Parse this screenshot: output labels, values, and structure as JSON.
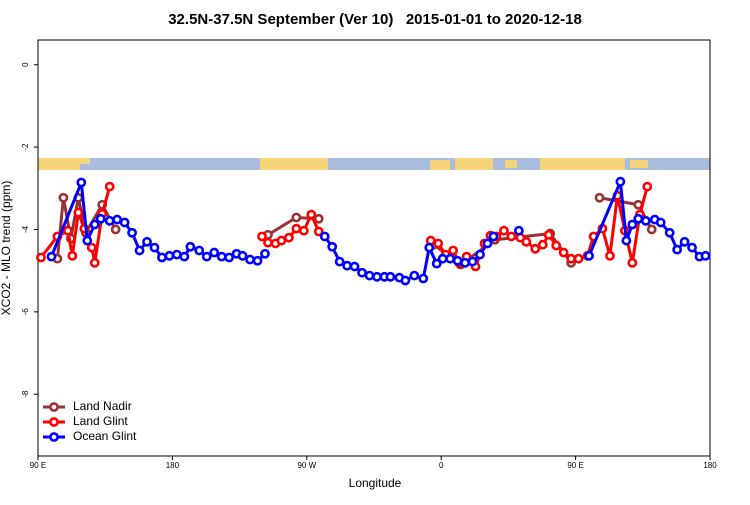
{
  "chart_data": {
    "type": "line",
    "title": "32.5N-37.5N September (Ver 10)   2015-01-01 to 2020-12-18",
    "x_label": "Longitude",
    "y_label": "XCO2 - MLO trend (ppm)",
    "xlim": [
      90,
      540
    ],
    "xticks": [
      {
        "value": 90,
        "label": "90 E"
      },
      {
        "value": 180,
        "label": "180"
      },
      {
        "value": 270,
        "label": "90 W"
      },
      {
        "value": 360,
        "label": "0"
      },
      {
        "value": 450,
        "label": "90 E"
      },
      {
        "value": 540,
        "label": "180"
      }
    ],
    "ylim": [
      -9.5,
      0.6
    ],
    "yticks": [
      0,
      -2,
      -4,
      -6,
      -8
    ],
    "legend": "bottom-left",
    "series": [
      {
        "name": "Land Nadir",
        "color": "#993333",
        "x": [
          103,
          107,
          112,
          117,
          122,
          133,
          142,
          null,
          244,
          263,
          278,
          null,
          355,
          373,
          396,
          433,
          447,
          null,
          466,
          492,
          501
        ],
        "values": [
          -4.71,
          -3.23,
          -4.22,
          -3.23,
          -4.08,
          -3.4,
          -4.0,
          null,
          -4.13,
          -3.71,
          -3.74,
          null,
          -4.37,
          -4.85,
          -4.25,
          -4.1,
          -4.81,
          null,
          -3.23,
          -3.4,
          -4.0
        ]
      },
      {
        "name": "Land Glint",
        "color": "#ff0000",
        "x": [
          92,
          103,
          110,
          113,
          117,
          121,
          126,
          128,
          133,
          138,
          null,
          240,
          244,
          249,
          253,
          258,
          263,
          268,
          273,
          278,
          null,
          353,
          358,
          363,
          368,
          372,
          377,
          383,
          389,
          393,
          397,
          402,
          407,
          413,
          417,
          423,
          428,
          432,
          437,
          442,
          447,
          452,
          458,
          462,
          468,
          473,
          478,
          483,
          488,
          493,
          498
        ],
        "values": [
          -4.68,
          -4.17,
          -4.03,
          -4.64,
          -3.59,
          -3.98,
          -4.44,
          -4.81,
          -3.62,
          -2.96,
          null,
          -4.17,
          -4.32,
          -4.34,
          -4.27,
          -4.2,
          -3.98,
          -4.03,
          -3.64,
          -4.05,
          null,
          -4.27,
          -4.34,
          -4.61,
          -4.51,
          -4.81,
          -4.66,
          -4.9,
          -4.34,
          -4.15,
          -4.17,
          -4.03,
          -4.17,
          -4.2,
          -4.3,
          -4.47,
          -4.37,
          -4.13,
          -4.39,
          -4.56,
          -4.71,
          -4.71,
          -4.64,
          -4.17,
          -3.98,
          -4.64,
          -3.18,
          -4.03,
          -4.81,
          -3.64,
          -2.96
        ]
      },
      {
        "name": "Ocean Glint",
        "color": "#0000ff",
        "x": [
          99,
          119,
          123,
          128,
          132,
          138,
          143,
          148,
          153,
          158,
          163,
          168,
          173,
          178,
          183,
          188,
          192,
          198,
          203,
          208,
          213,
          218,
          223,
          227,
          232,
          237,
          242,
          null,
          282,
          287,
          292,
          297,
          302,
          307,
          312,
          317,
          322,
          326,
          332,
          336,
          342,
          348,
          352,
          357,
          361,
          366,
          371,
          376,
          381,
          386,
          391,
          395,
          null,
          412,
          null,
          459,
          480,
          484,
          488,
          492,
          497,
          503,
          507,
          513,
          518,
          523,
          528,
          533,
          537
        ],
        "values": [
          -4.66,
          -2.86,
          -4.27,
          -3.88,
          -3.74,
          -3.79,
          -3.76,
          -3.83,
          -4.08,
          -4.51,
          -4.3,
          -4.44,
          -4.68,
          -4.64,
          -4.61,
          -4.66,
          -4.42,
          -4.51,
          -4.66,
          -4.56,
          -4.66,
          -4.68,
          -4.59,
          -4.64,
          -4.73,
          -4.76,
          -4.59,
          null,
          -4.17,
          -4.42,
          -4.78,
          -4.88,
          -4.9,
          -5.05,
          -5.12,
          -5.15,
          -5.15,
          -5.15,
          -5.17,
          -5.24,
          -5.12,
          -5.19,
          -4.44,
          -4.83,
          -4.71,
          -4.71,
          -4.76,
          -4.81,
          -4.78,
          -4.61,
          -4.34,
          -4.17,
          null,
          -4.03,
          null,
          -4.64,
          -2.84,
          -4.27,
          -3.88,
          -3.74,
          -3.79,
          -3.76,
          -3.83,
          -4.08,
          -4.49,
          -4.3,
          -4.44,
          -4.66,
          -4.64
        ]
      }
    ]
  }
}
